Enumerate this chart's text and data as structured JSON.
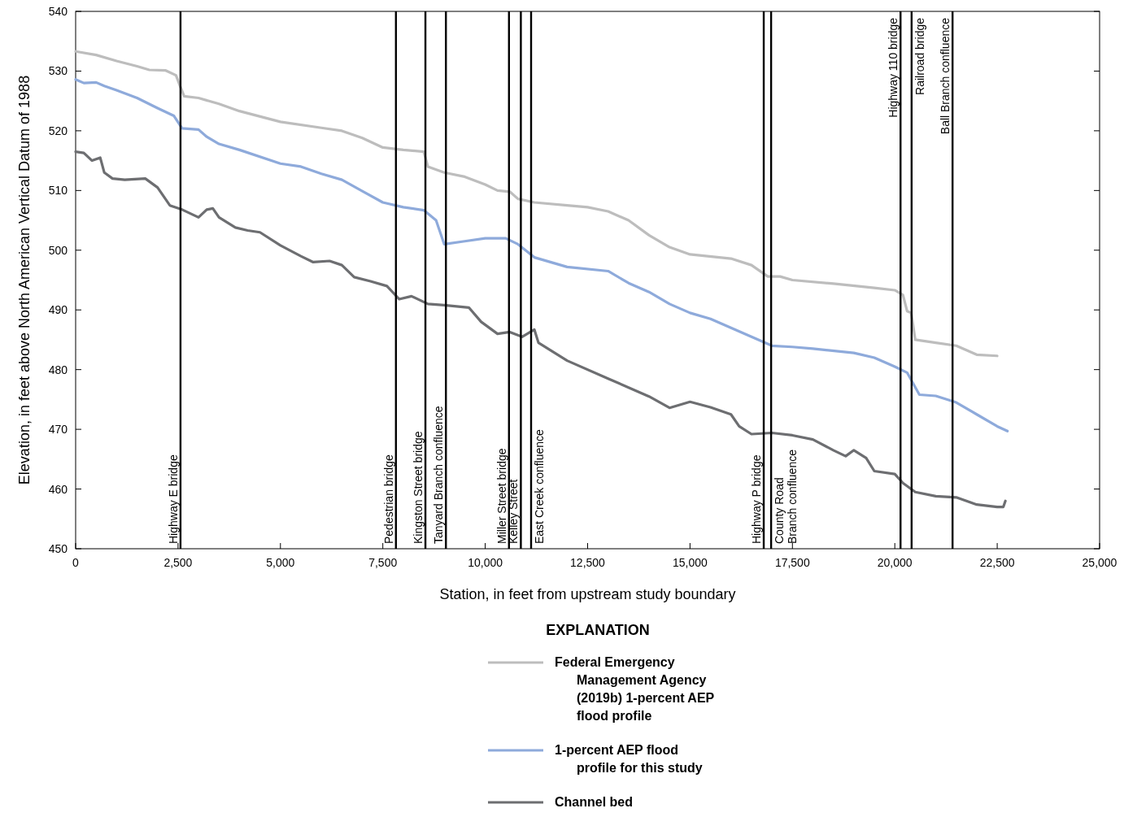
{
  "chart_data": {
    "type": "line",
    "xlabel": "Station, in feet from upstream study boundary",
    "ylabel": "Elevation, in feet above North American Vertical Datum of 1988",
    "legend_title": "EXPLANATION",
    "legend": "bottom",
    "grid": false,
    "xlim": [
      0,
      25000
    ],
    "xticks": [
      0,
      {
        "value": 2500,
        "label": "2,500"
      },
      {
        "value": 5000,
        "label": "5,000"
      },
      {
        "value": 7500,
        "label": "7,500"
      },
      {
        "value": 10000,
        "label": "10,000"
      },
      {
        "value": 12500,
        "label": "12,500"
      },
      {
        "value": 15000,
        "label": "15,000"
      },
      {
        "value": 17500,
        "label": "17,500"
      },
      {
        "value": 20000,
        "label": "20,000"
      },
      {
        "value": 22500,
        "label": "22,500"
      },
      {
        "value": 25000,
        "label": "25,000"
      }
    ],
    "ylim": [
      450,
      540
    ],
    "yticks": [
      450,
      460,
      470,
      480,
      490,
      500,
      510,
      520,
      530,
      540
    ],
    "series": [
      {
        "name": "Federal Emergency Management Agency (2019b) 1-percent AEP flood profile",
        "color": "#bdbdbd",
        "x": [
          0,
          500,
          1000,
          1500,
          1800,
          2200,
          2450,
          2550,
          2650,
          3000,
          3500,
          4000,
          5000,
          6000,
          6500,
          7000,
          7500,
          8000,
          8500,
          8600,
          9000,
          9500,
          10000,
          10300,
          10600,
          10800,
          11200,
          12000,
          12500,
          13000,
          13500,
          14000,
          14500,
          15000,
          16000,
          16500,
          16900,
          17200,
          17500,
          18500,
          19500,
          20000,
          20200,
          20300,
          20400,
          20500,
          21000,
          21500,
          22000,
          22500
        ],
        "values": [
          533.3,
          532.7,
          531.7,
          530.8,
          530.2,
          530.1,
          529.3,
          527.5,
          525.8,
          525.5,
          524.5,
          523.3,
          521.5,
          520.5,
          520.0,
          518.8,
          517.2,
          516.8,
          516.5,
          514,
          513,
          512.3,
          511,
          510,
          509.8,
          508.6,
          508,
          507.5,
          507.2,
          506.5,
          505,
          502.5,
          500.5,
          499.3,
          498.6,
          497.5,
          495.6,
          495.6,
          495,
          494.4,
          493.7,
          493.3,
          492.5,
          489.8,
          489.5,
          485,
          484.5,
          484,
          482.5,
          482.3
        ]
      },
      {
        "name": "1-percent AEP flood profile for this study",
        "color": "#8eaadb",
        "x": [
          0,
          200,
          500,
          700,
          1000,
          1500,
          2000,
          2400,
          2600,
          3000,
          3200,
          3500,
          4000,
          5000,
          5500,
          6000,
          6500,
          7000,
          7500,
          8000,
          8500,
          8800,
          9000,
          9500,
          10000,
          10500,
          10800,
          11200,
          12000,
          13000,
          13500,
          14000,
          14500,
          15000,
          15500,
          16000,
          16500,
          17000,
          17500,
          18000,
          19000,
          19500,
          20000,
          20300,
          20600,
          21000,
          21500,
          22000,
          22500,
          22750
        ],
        "values": [
          528.6,
          528,
          528.1,
          527.5,
          526.8,
          525.5,
          523.8,
          522.5,
          520.4,
          520.2,
          519,
          517.8,
          516.8,
          514.5,
          514,
          512.8,
          511.8,
          509.9,
          508,
          507.2,
          506.7,
          505,
          501,
          501.5,
          502,
          502,
          501,
          498.8,
          497.2,
          496.5,
          494.5,
          493,
          491,
          489.5,
          488.5,
          487,
          485.5,
          484,
          483.8,
          483.5,
          482.8,
          482,
          480.5,
          479.5,
          475.8,
          475.6,
          474.5,
          472.5,
          470.5,
          469.7
        ]
      },
      {
        "name": "Channel bed",
        "color": "#6d6e71",
        "x": [
          0,
          200,
          400,
          600,
          700,
          900,
          1200,
          1700,
          2000,
          2300,
          2600,
          3000,
          3200,
          3350,
          3500,
          3900,
          4200,
          4500,
          5000,
          5500,
          5800,
          6200,
          6500,
          6800,
          7200,
          7600,
          7900,
          8200,
          8600,
          9000,
          9600,
          9900,
          10300,
          10600,
          10900,
          11200,
          11300,
          12000,
          13000,
          14000,
          14500,
          15000,
          15500,
          16000,
          16200,
          16500,
          17000,
          17500,
          18000,
          18500,
          18800,
          19000,
          19300,
          19500,
          20000,
          20200,
          20500,
          21000,
          21500,
          22000,
          22500,
          22650,
          22700
        ],
        "values": [
          516.5,
          516.3,
          515,
          515.5,
          513,
          512,
          511.8,
          512,
          510.5,
          507.5,
          506.8,
          505.5,
          506.8,
          507,
          505.5,
          503.8,
          503.3,
          503,
          500.8,
          499,
          498,
          498.2,
          497.5,
          495.5,
          494.8,
          494,
          491.8,
          492.3,
          491,
          490.8,
          490.4,
          488,
          486,
          486.3,
          485.5,
          486.7,
          484.5,
          481.5,
          478.5,
          475.5,
          473.6,
          474.6,
          473.7,
          472.5,
          470.5,
          469.2,
          469.4,
          469,
          468.3,
          466.5,
          465.5,
          466.5,
          465.2,
          463,
          462.5,
          461,
          459.5,
          458.8,
          458.6,
          457.4,
          457,
          457,
          458
        ]
      }
    ],
    "ref_lines": [
      {
        "axis": "x",
        "value": 2560,
        "label": "Highway E bridge",
        "color": "#000000"
      },
      {
        "axis": "x",
        "value": 7820,
        "label": "Pedestrian bridge",
        "color": "#000000"
      },
      {
        "axis": "x",
        "value": 8540,
        "label": "Kingston Street bridge",
        "color": "#000000"
      },
      {
        "axis": "x",
        "value": 9040,
        "label": "Tanyard Branch confluence",
        "color": "#000000"
      },
      {
        "axis": "x",
        "value": 10580,
        "label": "Miller Street bridge",
        "color": "#000000"
      },
      {
        "axis": "x",
        "value": 10870,
        "label": "Kelley Street",
        "color": "#000000"
      },
      {
        "axis": "x",
        "value": 11120,
        "label": "East Creek confluence",
        "color": "#000000"
      },
      {
        "axis": "x",
        "value": 16800,
        "label": "Highway P bridge",
        "color": "#000000"
      },
      {
        "axis": "x",
        "value": 16980,
        "label": "County Road Branch confluence",
        "color": "#000000"
      },
      {
        "axis": "x",
        "value": 20140,
        "label": "Highway 110 bridge",
        "color": "#000000"
      },
      {
        "axis": "x",
        "value": 20410,
        "label": "Railroad bridge",
        "color": "#000000"
      },
      {
        "axis": "x",
        "value": 21410,
        "label": "Ball Branch confluence",
        "color": "#000000"
      }
    ]
  }
}
